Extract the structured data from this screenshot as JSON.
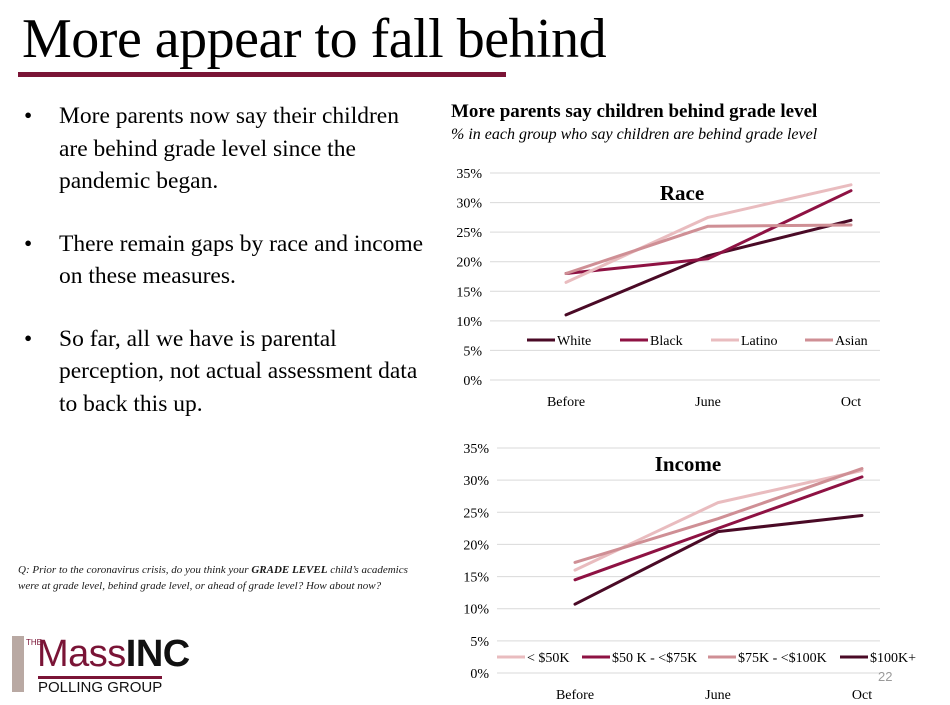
{
  "slide": {
    "title": "More appear to fall behind",
    "bullets": [
      "More parents now say their children are behind grade level since the pandemic began.",
      "There remain gaps by race and income on these measures.",
      "So far, all we have is parental perception, not actual assessment data to back this up."
    ],
    "bullet_symbol": "•",
    "question": {
      "prefix": "Q: Prior to the coronavirus crisis, do you think your ",
      "emphasis": "GRADE LEVEL",
      "suffix": " child’s academics were at grade level, behind grade level, or ahead of grade level? How about now?"
    },
    "logo": {
      "the": "THE",
      "mass": "Mass",
      "inc": "INC",
      "polling": "POLLING GROUP"
    },
    "page_number": "22"
  },
  "chart_header": {
    "title": "More parents say children behind grade level",
    "subtitle": "% in each group who say children are behind grade level"
  },
  "chart_data": [
    {
      "type": "line",
      "title": "Race",
      "x": [
        "Before",
        "June",
        "Oct"
      ],
      "ylim": [
        0,
        35
      ],
      "yticks": [
        "0%",
        "5%",
        "10%",
        "15%",
        "20%",
        "25%",
        "30%",
        "35%"
      ],
      "grid": true,
      "legend": "bottom",
      "series": [
        {
          "name": "White",
          "color": "#4a0a26",
          "values": [
            11,
            21,
            27
          ]
        },
        {
          "name": "Black",
          "color": "#8e1243",
          "values": [
            18,
            20.5,
            32
          ]
        },
        {
          "name": "Latino",
          "color": "#e9bcbf",
          "values": [
            16.5,
            27.5,
            33
          ]
        },
        {
          "name": "Asian",
          "color": "#cf8f95",
          "values": [
            18,
            26,
            26.2
          ]
        }
      ]
    },
    {
      "type": "line",
      "title": "Income",
      "x": [
        "Before",
        "June",
        "Oct"
      ],
      "ylim": [
        0,
        35
      ],
      "yticks": [
        "0%",
        "5%",
        "10%",
        "15%",
        "20%",
        "25%",
        "30%",
        "35%"
      ],
      "grid": true,
      "legend": "bottom",
      "series": [
        {
          "name": "< $50K",
          "color": "#e9bcbf",
          "values": [
            16,
            26.5,
            31.5
          ]
        },
        {
          "name": "$50 K - <$75K",
          "color": "#8e1243",
          "values": [
            14.5,
            22.5,
            30.5
          ]
        },
        {
          "name": "$75K - <$100K",
          "color": "#cf8f95",
          "values": [
            17.2,
            24,
            31.8
          ]
        },
        {
          "name": "$100K+",
          "color": "#4a0a26",
          "values": [
            10.7,
            22,
            24.5
          ]
        }
      ]
    }
  ]
}
